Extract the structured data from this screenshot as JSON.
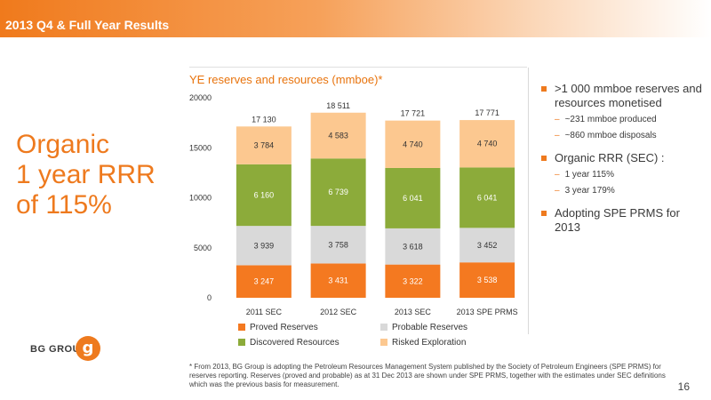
{
  "header": {
    "title": "2013 Q4 & Full Year Results"
  },
  "left": {
    "headline_lines": [
      "Organic",
      "1 year RRR",
      "of 115%"
    ]
  },
  "logo": {
    "text": "BG GROUP",
    "glyph": "g"
  },
  "chart_data": {
    "type": "bar",
    "stacked": true,
    "title": "YE reserves and resources (mmboe)*",
    "categories": [
      "2011 SEC",
      "2012 SEC",
      "2013 SEC",
      "2013 SPE PRMS"
    ],
    "ylim": [
      0,
      20000
    ],
    "yticks": [
      0,
      5000,
      10000,
      15000,
      20000
    ],
    "series": [
      {
        "name": "Proved Reserves",
        "color": "#f47920",
        "values": [
          3247,
          3431,
          3322,
          3538
        ],
        "labels": [
          "3 247",
          "3 431",
          "3 322",
          "3 538"
        ]
      },
      {
        "name": "Probable Reserves",
        "color": "#d9d9d9",
        "values": [
          3939,
          3758,
          3618,
          3452
        ],
        "labels": [
          "3 939",
          "3 758",
          "3 618",
          "3 452"
        ]
      },
      {
        "name": "Discovered Resources",
        "color": "#8cab3a",
        "values": [
          6160,
          6739,
          6041,
          6041
        ],
        "labels": [
          "6 160",
          "6 739",
          "6 041",
          "6 041"
        ]
      },
      {
        "name": "Risked Exploration",
        "color": "#fcc890",
        "values": [
          3784,
          4583,
          4740,
          4740
        ],
        "labels": [
          "3 784",
          "4 583",
          "4 740",
          "4 740"
        ]
      }
    ],
    "totals": [
      17130,
      18511,
      17721,
      17771
    ],
    "total_labels": [
      "17 130",
      "18 511",
      "17 721",
      "17 771"
    ],
    "legend_position": "bottom"
  },
  "bullets": [
    {
      "text": ">1 000 mmboe reserves and resources monetised",
      "subs": [
        "~231 mmboe produced",
        "~860 mmboe disposals"
      ]
    },
    {
      "text": "Organic RRR (SEC) :",
      "subs": [
        "1 year 115%",
        "3 year 179%"
      ]
    },
    {
      "text": "Adopting SPE PRMS for 2013",
      "subs": []
    }
  ],
  "footnote": "* From 2013, BG Group is adopting the Petroleum Resources Management System published by the Society of Petroleum Engineers (SPE PRMS) for reserves reporting. Reserves (proved and probable) as at 31 Dec 2013 are shown under SPE PRMS, together with the estimates under SEC definitions which was the previous basis for measurement.",
  "page_number": "16"
}
